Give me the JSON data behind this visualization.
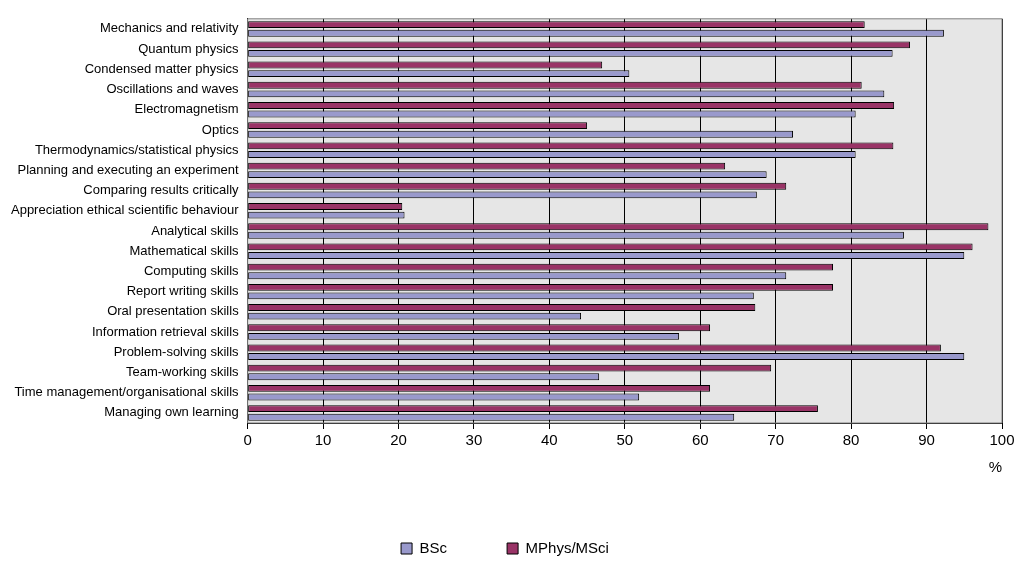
{
  "chart_data": {
    "type": "bar",
    "orientation": "horizontal",
    "xlabel": "%",
    "categories": [
      "Mechanics and relativity",
      "Quantum physics",
      "Condensed matter physics",
      "Oscillations and waves",
      "Electromagnetism",
      "Optics",
      "Thermodynamics/statistical physics",
      "Planning and executing an experiment",
      "Comparing results critically",
      "Appreciation ethical scientific behaviour",
      "Analytical skills",
      "Mathematical skills",
      "Computing skills",
      "Report writing skills",
      "Oral presentation skills",
      "Information retrieval skills",
      "Problem-solving skills",
      "Team-working skills",
      "Time management/organisational skills",
      "Managing own learning"
    ],
    "series": [
      {
        "name": "BSc",
        "color": "#9999cc",
        "values": [
          92.3,
          85.5,
          50.6,
          84.4,
          80.6,
          72.3,
          80.6,
          68.8,
          67.5,
          20.8,
          87,
          95,
          71.4,
          67.1,
          44.2,
          57.2,
          95,
          46.6,
          51.9,
          64.5
        ]
      },
      {
        "name": "MPhys/MSci",
        "color": "#993366",
        "values": [
          81.8,
          87.8,
          47,
          81.4,
          85.7,
          45,
          85.6,
          63.3,
          71.4,
          20.5,
          98.2,
          96.1,
          77.6,
          77.6,
          67.3,
          61.3,
          91.9,
          69.4,
          61.3,
          75.6
        ]
      }
    ],
    "xlim": [
      0,
      100
    ],
    "xticks": [
      0,
      10,
      20,
      30,
      40,
      50,
      60,
      70,
      80,
      90,
      100
    ],
    "grid": "x",
    "legend": "bottom"
  }
}
